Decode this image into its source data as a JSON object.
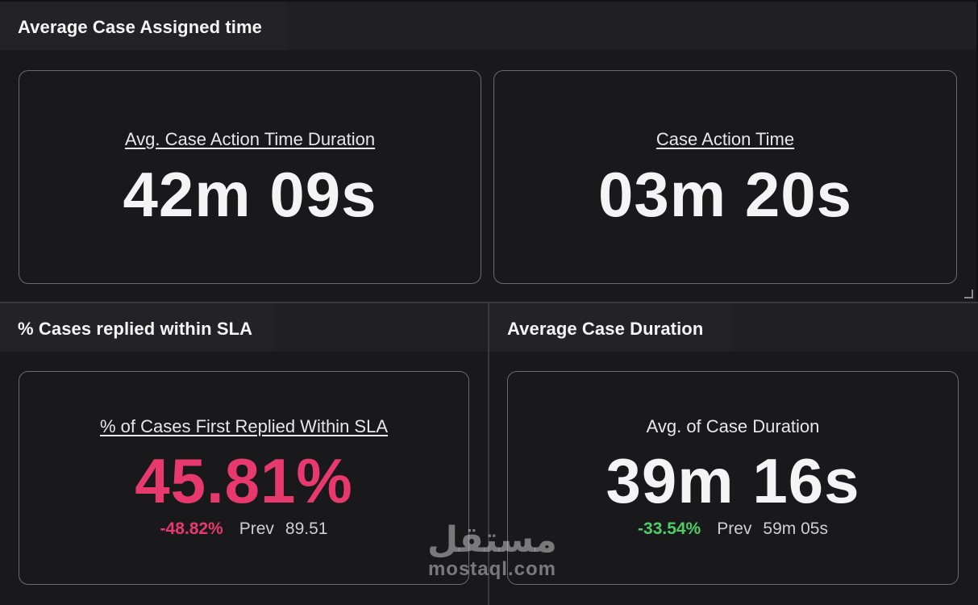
{
  "panels": {
    "assigned": {
      "title": "Average Case Assigned time",
      "cards": [
        {
          "label": "Avg. Case Action Time Duration",
          "value": "42m 09s"
        },
        {
          "label": "Case Action Time",
          "value": "03m 20s"
        }
      ]
    },
    "sla": {
      "title": "% Cases replied within SLA",
      "card": {
        "label": "% of Cases First Replied Within SLA",
        "value": "45.81%",
        "delta": "-48.82%",
        "prev_label": "Prev",
        "prev_value": "89.51"
      }
    },
    "duration": {
      "title": "Average Case Duration",
      "card": {
        "label": "Avg. of Case Duration",
        "value": "39m 16s",
        "delta": "-33.54%",
        "prev_label": "Prev",
        "prev_value": "59m 05s"
      }
    }
  },
  "watermark": {
    "arabic": "مستقل",
    "latin": "mostaql.com"
  },
  "colors": {
    "background": "#111113",
    "header": "#232325",
    "negative": "#e8396f",
    "positive": "#4fce68"
  }
}
